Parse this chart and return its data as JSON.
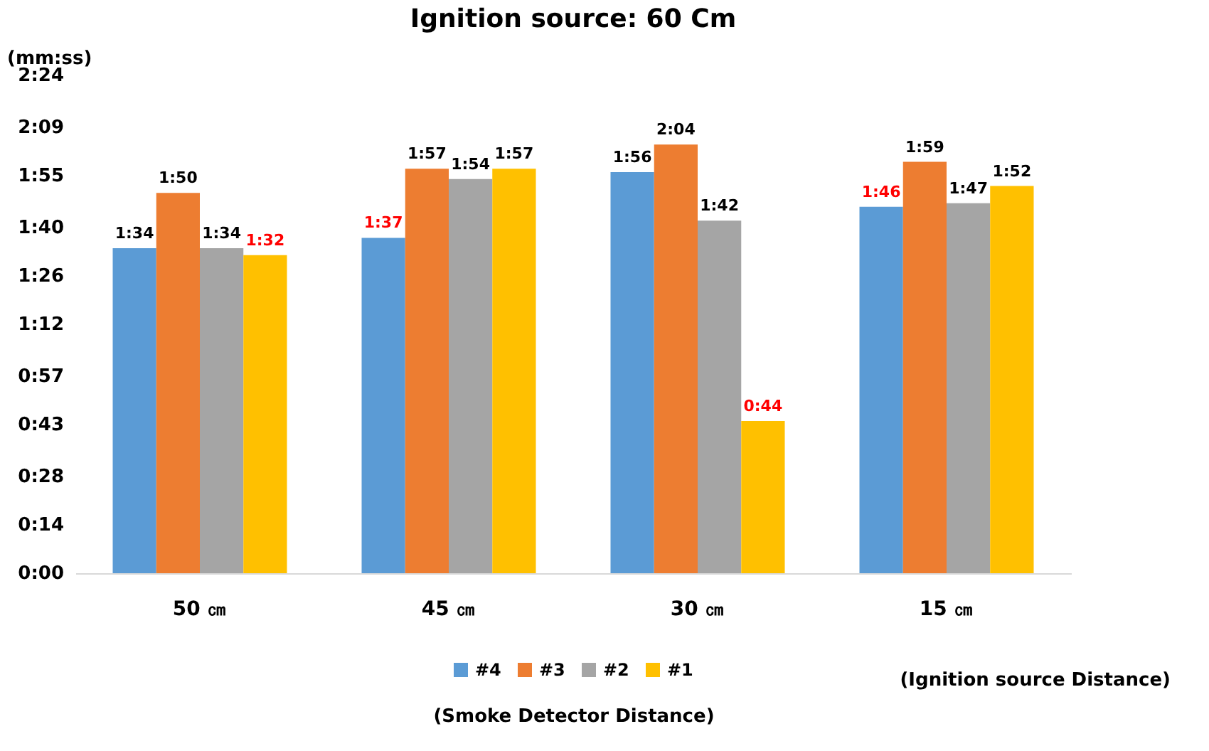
{
  "chart_data": {
    "type": "bar",
    "title": "Ignition source: 60 Cm",
    "ylabel": "(mm:ss)",
    "xlabel": "(Smoke Detector Distance)",
    "categories": [
      "50 ㎝",
      "45 ㎝",
      "30 ㎝",
      "15 ㎝"
    ],
    "series": [
      {
        "name": "#4",
        "color": "#5b9bd5",
        "values": [
          94,
          97,
          116,
          106
        ],
        "value_labels": [
          "1:34",
          "1:37",
          "1:56",
          "1:46"
        ]
      },
      {
        "name": "#3",
        "color": "#ed7d31",
        "values": [
          110,
          117,
          124,
          119
        ],
        "value_labels": [
          "1:50",
          "1:57",
          "2:04",
          "1:59"
        ]
      },
      {
        "name": "#2",
        "color": "#a5a5a5",
        "values": [
          94,
          114,
          102,
          107
        ],
        "value_labels": [
          "1:34",
          "1:54",
          "1:42",
          "1:47"
        ]
      },
      {
        "name": "#1",
        "color": "#ffc000",
        "values": [
          92,
          117,
          44,
          112
        ],
        "value_labels": [
          "1:32",
          "1:57",
          "0:44",
          "1:52"
        ]
      }
    ],
    "ylim": [
      0,
      144
    ],
    "yticks": [
      {
        "value": 0,
        "label": "0:00"
      },
      {
        "value": 14,
        "label": "0:14"
      },
      {
        "value": 28,
        "label": "0:28"
      },
      {
        "value": 43,
        "label": "0:43"
      },
      {
        "value": 57,
        "label": "0:57"
      },
      {
        "value": 72,
        "label": "1:12"
      },
      {
        "value": 86,
        "label": "1:26"
      },
      {
        "value": 100,
        "label": "1:40"
      },
      {
        "value": 115,
        "label": "1:55"
      },
      {
        "value": 129,
        "label": "2:09"
      },
      {
        "value": 144,
        "label": "2:24"
      }
    ],
    "grid": false,
    "legend": "bottom",
    "annotations": [
      "(Ignition source Distance)"
    ]
  }
}
